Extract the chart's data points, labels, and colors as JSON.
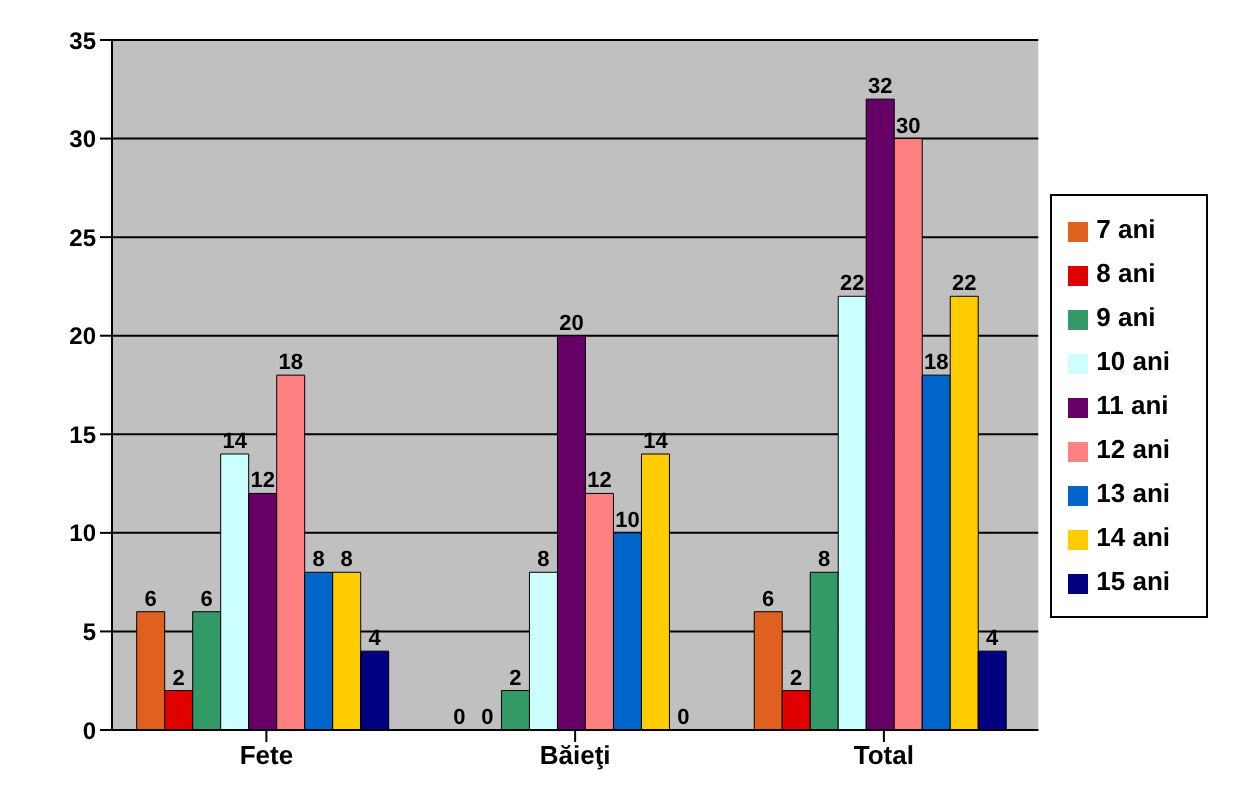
{
  "chart_data": {
    "type": "bar",
    "categories": [
      "Fete",
      "Băieţi",
      "Total"
    ],
    "series": [
      {
        "name": "7 ani",
        "color": "#e06020",
        "values": [
          6,
          0,
          6
        ]
      },
      {
        "name": "8 ani",
        "color": "#e00000",
        "values": [
          2,
          0,
          2
        ]
      },
      {
        "name": "9 ani",
        "color": "#339966",
        "values": [
          6,
          2,
          8
        ]
      },
      {
        "name": "10 ani",
        "color": "#ccffff",
        "values": [
          14,
          8,
          22
        ]
      },
      {
        "name": "11 ani",
        "color": "#660066",
        "values": [
          12,
          20,
          32
        ]
      },
      {
        "name": "12 ani",
        "color": "#ff8080",
        "values": [
          18,
          12,
          30
        ]
      },
      {
        "name": "13 ani",
        "color": "#0066cc",
        "values": [
          8,
          10,
          18
        ]
      },
      {
        "name": "14 ani",
        "color": "#ffcc00",
        "values": [
          8,
          14,
          22
        ]
      },
      {
        "name": "15 ani",
        "color": "#000080",
        "values": [
          4,
          0,
          4
        ]
      }
    ],
    "ylim": [
      0,
      35
    ],
    "yticks": [
      0,
      5,
      10,
      15,
      20,
      25,
      30,
      35
    ],
    "grid": "y",
    "legend": "right",
    "data_labels": true
  }
}
